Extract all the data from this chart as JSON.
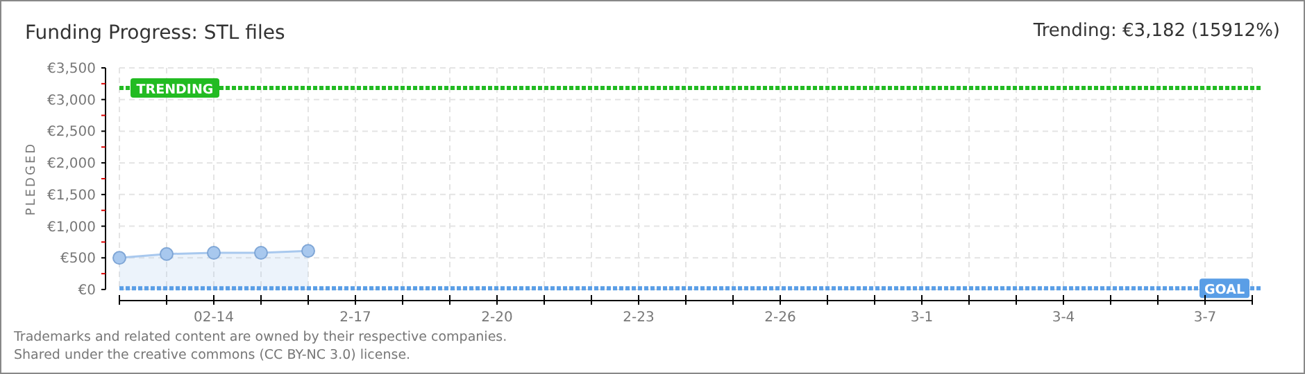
{
  "chart_data": {
    "type": "area",
    "title": "Funding Progress: STL files",
    "subtitle": "Trending: €3,182 (15912%)",
    "ylabel": "PLEDGED",
    "x": [
      "--02-12",
      "--02-13",
      "--02-14",
      "--02-15",
      "--02-16"
    ],
    "series": [
      {
        "color": "#a8c8ee",
        "values": [
          500,
          560,
          580,
          580,
          610
        ]
      }
    ],
    "marker": "circle",
    "grid": true,
    "xlim": [
      "--02-12",
      "--03-08"
    ],
    "xticks": [
      {
        "value": "--02-12",
        "label": null
      },
      {
        "value": "--02-13",
        "label": null
      },
      {
        "value": "--02-14",
        "label": "02-14"
      },
      {
        "value": "--02-15",
        "label": null
      },
      {
        "value": "--02-16",
        "label": null
      },
      {
        "value": "--02-17",
        "label": "2-17"
      },
      {
        "value": "--02-18",
        "label": null
      },
      {
        "value": "--02-19",
        "label": null
      },
      {
        "value": "--02-20",
        "label": "2-20"
      },
      {
        "value": "--02-21",
        "label": null
      },
      {
        "value": "--02-22",
        "label": null
      },
      {
        "value": "--02-23",
        "label": "2-23"
      },
      {
        "value": "--02-24",
        "label": null
      },
      {
        "value": "--02-25",
        "label": null
      },
      {
        "value": "--02-26",
        "label": "2-26"
      },
      {
        "value": "--02-27",
        "label": null
      },
      {
        "value": "--02-28",
        "label": null
      },
      {
        "value": "--03-01",
        "label": "3-1"
      },
      {
        "value": "--03-02",
        "label": null
      },
      {
        "value": "--03-03",
        "label": null
      },
      {
        "value": "--03-04",
        "label": "3-4"
      },
      {
        "value": "--03-05",
        "label": null
      },
      {
        "value": "--03-06",
        "label": null
      },
      {
        "value": "--03-07",
        "label": "3-7"
      },
      {
        "value": "--03-08",
        "label": null
      }
    ],
    "ylim": [
      0,
      3500
    ],
    "yticks": [
      {
        "value": 0,
        "label": "€0"
      },
      {
        "value": 250,
        "label": null
      },
      {
        "value": 500,
        "label": "€500"
      },
      {
        "value": 750,
        "label": null
      },
      {
        "value": 1000,
        "label": "€1,000"
      },
      {
        "value": 1250,
        "label": null
      },
      {
        "value": 1500,
        "label": "€1,500"
      },
      {
        "value": 1750,
        "label": null
      },
      {
        "value": 2000,
        "label": "€2,000"
      },
      {
        "value": 2250,
        "label": null
      },
      {
        "value": 2500,
        "label": "€2,500"
      },
      {
        "value": 2750,
        "label": null
      },
      {
        "value": 3000,
        "label": "€3,000"
      },
      {
        "value": 3250,
        "label": null
      },
      {
        "value": 3500,
        "label": "€3,500"
      }
    ],
    "ref_lines": [
      {
        "axis": "y",
        "value": 3182,
        "label": "TRENDING",
        "color": "#22bb22",
        "line_style": "dotted"
      },
      {
        "axis": "y",
        "value": 20,
        "label": "GOAL",
        "color": "#5a9ee6",
        "line_style": "dotted"
      }
    ],
    "annotations": [
      "Trademarks and related content are owned by their respective companies.",
      "Shared under the creative commons (CC BY-NC 3.0) license."
    ]
  }
}
